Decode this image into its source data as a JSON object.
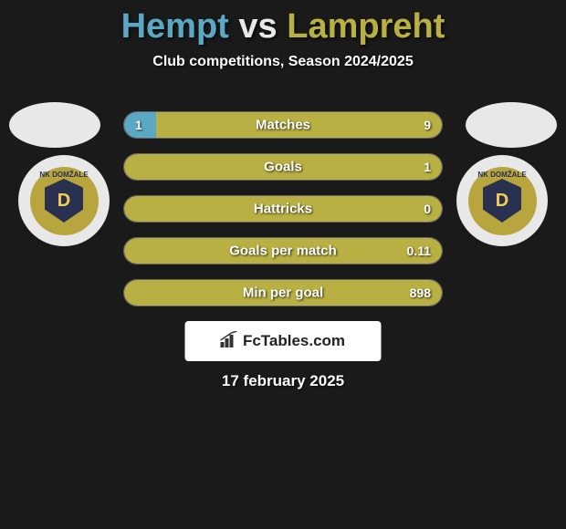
{
  "header": {
    "player1": "Hempt",
    "vs": "vs",
    "player2": "Lampreht",
    "subtitle": "Club competitions, Season 2024/2025",
    "color1": "#5ba8c4",
    "color2": "#b8b042"
  },
  "badge": {
    "club_text": "NK DOMŽALE",
    "letter": "D"
  },
  "bars": {
    "background": "#444",
    "border": "#666",
    "left_color": "#5ba8c4",
    "right_color": "#b8b042",
    "rows": [
      {
        "label": "Matches",
        "left_val": "1",
        "right_val": "9",
        "left_pct": 10,
        "right_pct": 90
      },
      {
        "label": "Goals",
        "left_val": "",
        "right_val": "1",
        "left_pct": 0,
        "right_pct": 100
      },
      {
        "label": "Hattricks",
        "left_val": "",
        "right_val": "0",
        "left_pct": 0,
        "right_pct": 100
      },
      {
        "label": "Goals per match",
        "left_val": "",
        "right_val": "0.11",
        "left_pct": 0,
        "right_pct": 100
      },
      {
        "label": "Min per goal",
        "left_val": "",
        "right_val": "898",
        "left_pct": 0,
        "right_pct": 100
      }
    ]
  },
  "logo": {
    "text": "FcTables.com"
  },
  "date": "17 february 2025"
}
